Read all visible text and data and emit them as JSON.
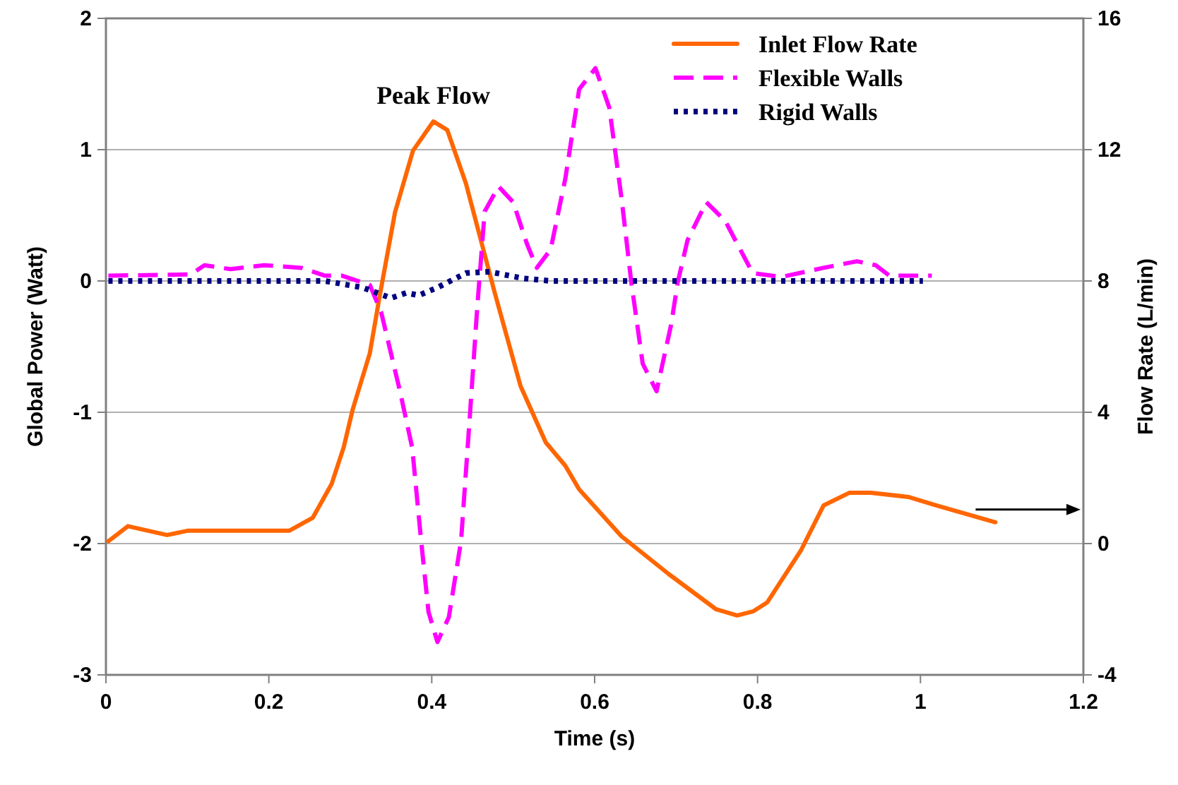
{
  "chart_data": {
    "type": "line",
    "xlabel": "Time (s)",
    "ylabel": "Global Power (Watt)",
    "y2label": "Flow Rate (L/min)",
    "xlim": [
      0,
      1.2
    ],
    "xticks": [
      0,
      0.2,
      0.4,
      0.6,
      0.8,
      1,
      1.2
    ],
    "ylim": [
      -3,
      2
    ],
    "yticks": [
      -3,
      -2,
      -1,
      0,
      1,
      2
    ],
    "y2lim": [
      -4,
      16
    ],
    "y2ticks": [
      -4,
      0,
      4,
      8,
      12,
      16
    ],
    "grid": "y",
    "legend": "top right",
    "marker": "none",
    "annotations": [
      {
        "text": "Peak Flow",
        "x": 0.402,
        "y": 1.22
      }
    ],
    "series": [
      {
        "name": "Inlet Flow Rate",
        "color": "#ff6600",
        "axis": "y2",
        "line_style": "solid",
        "x": [
          0.003,
          0.027,
          0.075,
          0.1,
          0.225,
          0.254,
          0.277,
          0.292,
          0.303,
          0.324,
          0.336,
          0.355,
          0.377,
          0.402,
          0.419,
          0.442,
          0.477,
          0.509,
          0.54,
          0.564,
          0.581,
          0.633,
          0.691,
          0.749,
          0.775,
          0.795,
          0.812,
          0.853,
          0.881,
          0.913,
          0.939,
          0.985,
          1.02,
          1.092
        ],
        "values": [
          0.07,
          0.53,
          0.26,
          0.39,
          0.39,
          0.79,
          1.81,
          2.94,
          4.09,
          5.8,
          7.53,
          10.1,
          11.97,
          12.86,
          12.6,
          10.97,
          7.67,
          4.8,
          3.08,
          2.37,
          1.65,
          0.22,
          -0.93,
          -2.0,
          -2.19,
          -2.06,
          -1.79,
          -0.22,
          1.16,
          1.55,
          1.55,
          1.42,
          1.16,
          0.65
        ]
      },
      {
        "name": "Flexible Walls",
        "color": "#ff00ff",
        "line_style": "dashed",
        "x": [
          0.003,
          0.104,
          0.121,
          0.153,
          0.194,
          0.24,
          0.269,
          0.29,
          0.324,
          0.338,
          0.361,
          0.376,
          0.387,
          0.396,
          0.407,
          0.421,
          0.436,
          0.447,
          0.456,
          0.465,
          0.482,
          0.5,
          0.517,
          0.529,
          0.546,
          0.564,
          0.581,
          0.601,
          0.618,
          0.633,
          0.645,
          0.659,
          0.676,
          0.694,
          0.702,
          0.714,
          0.737,
          0.76,
          0.794,
          0.829,
          0.881,
          0.922,
          0.945,
          0.962,
          1.014
        ],
        "values": [
          0.04,
          0.05,
          0.12,
          0.09,
          0.12,
          0.1,
          0.04,
          0.04,
          -0.03,
          -0.24,
          -0.84,
          -1.27,
          -1.98,
          -2.52,
          -2.75,
          -2.56,
          -1.98,
          -1.01,
          -0.19,
          0.53,
          0.72,
          0.6,
          0.28,
          0.1,
          0.24,
          0.78,
          1.46,
          1.62,
          1.32,
          0.63,
          -0.01,
          -0.63,
          -0.84,
          -0.33,
          -0.01,
          0.31,
          0.6,
          0.46,
          0.06,
          0.03,
          0.1,
          0.15,
          0.12,
          0.04,
          0.04
        ]
      },
      {
        "name": "Rigid Walls",
        "color": "#000080",
        "line_style": "dotted",
        "x": [
          0.003,
          0.269,
          0.315,
          0.35,
          0.369,
          0.384,
          0.407,
          0.442,
          0.471,
          0.512,
          0.546,
          1.003
        ],
        "values": [
          0,
          0,
          -0.05,
          -0.13,
          -0.09,
          -0.11,
          -0.05,
          0.06,
          0.07,
          0.02,
          0,
          0
        ]
      }
    ]
  }
}
